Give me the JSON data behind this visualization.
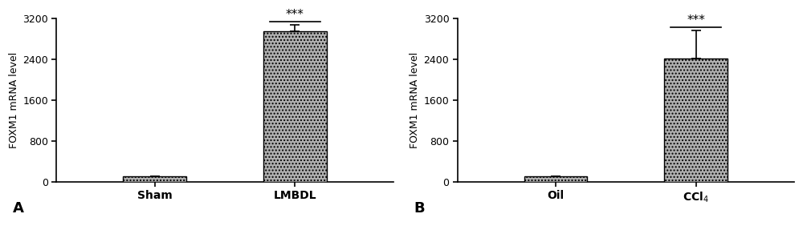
{
  "panel_A": {
    "categories": [
      "Sham",
      "LMBDL"
    ],
    "values": [
      100,
      2950
    ],
    "errors": [
      0,
      130
    ],
    "ylim": [
      0,
      3200
    ],
    "yticks": [
      0,
      800,
      1600,
      2400,
      3200
    ],
    "ylabel": "FOXM1 mRNA level",
    "label": "A",
    "sig_text": "***",
    "bar_color": "#b0b0b0",
    "bar_edgecolor": "#000000",
    "hatch": "...."
  },
  "panel_B": {
    "categories": [
      "Oil",
      "CCl$_4$"
    ],
    "values": [
      100,
      2420
    ],
    "errors": [
      0,
      550
    ],
    "ylim": [
      0,
      3200
    ],
    "yticks": [
      0,
      800,
      1600,
      2400,
      3200
    ],
    "ylabel": "FOXM1 mRNA level",
    "label": "B",
    "sig_text": "***",
    "bar_color": "#b0b0b0",
    "bar_edgecolor": "#000000",
    "hatch": "...."
  },
  "fig_background": "#ffffff",
  "bar_width": 0.45,
  "fontsize_ticks": 9,
  "fontsize_ylabel": 9,
  "fontsize_label": 13,
  "fontsize_sig": 11,
  "fontsize_xtick": 10
}
